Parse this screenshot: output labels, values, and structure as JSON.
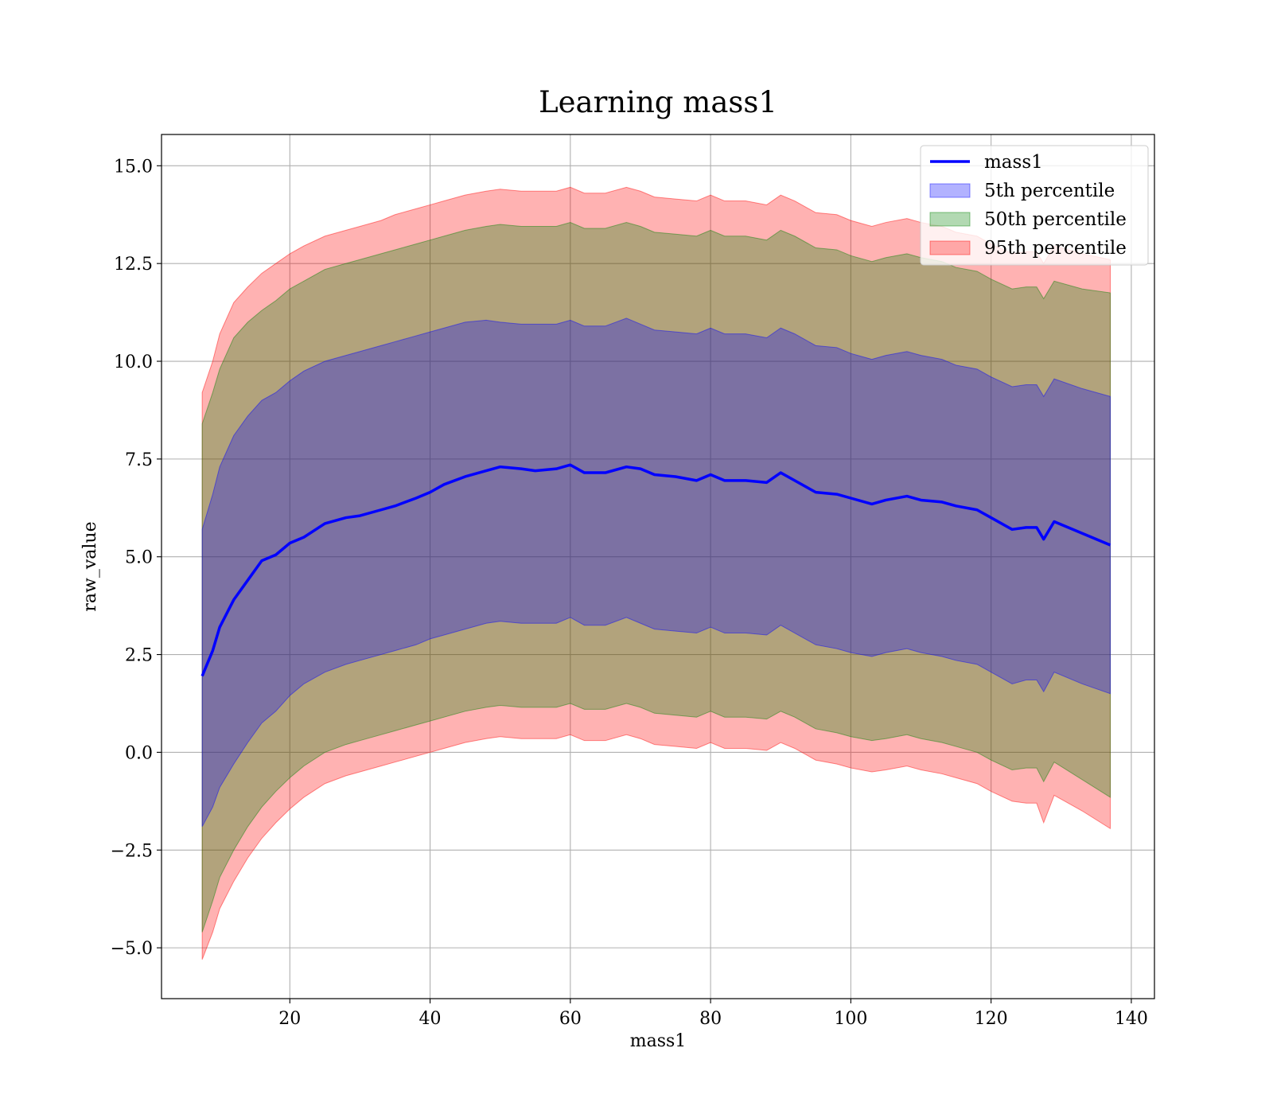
{
  "chart_data": {
    "type": "area",
    "title": "Learning mass1",
    "xlabel": "mass1",
    "ylabel": "raw_value",
    "xlim": [
      1.7,
      143.3
    ],
    "ylim": [
      -6.3,
      15.8
    ],
    "xticks": [
      20,
      40,
      60,
      80,
      100,
      120,
      140
    ],
    "xtick_labels": [
      "20",
      "40",
      "60",
      "80",
      "100",
      "120",
      "140"
    ],
    "yticks": [
      -5.0,
      -2.5,
      0.0,
      2.5,
      5.0,
      7.5,
      10.0,
      12.5,
      15.0
    ],
    "ytick_labels": [
      "−5.0",
      "−2.5",
      "0.0",
      "2.5",
      "5.0",
      "7.5",
      "10.0",
      "12.5",
      "15.0"
    ],
    "grid": true,
    "legend_position": "top-right",
    "x": [
      7.5,
      9,
      10,
      12,
      14,
      16,
      18,
      20,
      22,
      25,
      28,
      30,
      33,
      35,
      38,
      40,
      42,
      45,
      48,
      50,
      53,
      55,
      58,
      60,
      62,
      65,
      68,
      70,
      72,
      75,
      78,
      80,
      82,
      85,
      88,
      90,
      92,
      95,
      98,
      100,
      103,
      105,
      108,
      110,
      113,
      115,
      118,
      120,
      123,
      125,
      126.5,
      127.5,
      129,
      133,
      137
    ],
    "series": [
      {
        "name": "mass1",
        "kind": "line",
        "color": "#0000ff",
        "values": [
          1.95,
          2.6,
          3.2,
          3.9,
          4.4,
          4.9,
          5.05,
          5.35,
          5.5,
          5.85,
          6.0,
          6.05,
          6.2,
          6.3,
          6.5,
          6.65,
          6.85,
          7.05,
          7.2,
          7.3,
          7.25,
          7.2,
          7.25,
          7.35,
          7.15,
          7.15,
          7.3,
          7.25,
          7.1,
          7.05,
          6.95,
          7.1,
          6.95,
          6.95,
          6.9,
          7.15,
          6.95,
          6.65,
          6.6,
          6.5,
          6.35,
          6.45,
          6.55,
          6.45,
          6.4,
          6.3,
          6.2,
          6.0,
          5.7,
          5.75,
          5.75,
          5.45,
          5.9,
          5.6,
          5.3
        ]
      },
      {
        "name": "5th percentile",
        "kind": "band",
        "color": "#0000ff",
        "opacity": 0.3,
        "upper": [
          5.7,
          6.6,
          7.3,
          8.1,
          8.6,
          9.0,
          9.2,
          9.5,
          9.75,
          10.0,
          10.15,
          10.25,
          10.4,
          10.5,
          10.65,
          10.75,
          10.85,
          11.0,
          11.05,
          11.0,
          10.95,
          10.95,
          10.95,
          11.05,
          10.9,
          10.9,
          11.1,
          10.95,
          10.8,
          10.75,
          10.7,
          10.85,
          10.7,
          10.7,
          10.6,
          10.85,
          10.7,
          10.4,
          10.35,
          10.2,
          10.05,
          10.15,
          10.25,
          10.15,
          10.05,
          9.9,
          9.8,
          9.6,
          9.35,
          9.4,
          9.4,
          9.1,
          9.55,
          9.3,
          9.1
        ],
        "lower": [
          -1.9,
          -1.4,
          -0.9,
          -0.3,
          0.25,
          0.75,
          1.05,
          1.45,
          1.75,
          2.05,
          2.25,
          2.35,
          2.5,
          2.6,
          2.75,
          2.9,
          3.0,
          3.15,
          3.3,
          3.35,
          3.3,
          3.3,
          3.3,
          3.45,
          3.25,
          3.25,
          3.45,
          3.3,
          3.15,
          3.1,
          3.05,
          3.2,
          3.05,
          3.05,
          3.0,
          3.25,
          3.05,
          2.75,
          2.65,
          2.55,
          2.45,
          2.55,
          2.65,
          2.55,
          2.45,
          2.35,
          2.25,
          2.05,
          1.75,
          1.85,
          1.85,
          1.55,
          2.05,
          1.75,
          1.5
        ]
      },
      {
        "name": "50th percentile",
        "kind": "band",
        "color": "#008000",
        "opacity": 0.3,
        "upper": [
          8.4,
          9.2,
          9.8,
          10.6,
          11.0,
          11.3,
          11.55,
          11.85,
          12.05,
          12.35,
          12.5,
          12.6,
          12.75,
          12.85,
          13.0,
          13.1,
          13.2,
          13.35,
          13.45,
          13.5,
          13.45,
          13.45,
          13.45,
          13.55,
          13.4,
          13.4,
          13.55,
          13.45,
          13.3,
          13.25,
          13.2,
          13.35,
          13.2,
          13.2,
          13.1,
          13.35,
          13.2,
          12.9,
          12.85,
          12.7,
          12.55,
          12.65,
          12.75,
          12.65,
          12.55,
          12.4,
          12.3,
          12.1,
          11.85,
          11.9,
          11.9,
          11.6,
          12.05,
          11.85,
          11.75
        ],
        "lower": [
          -4.6,
          -3.8,
          -3.2,
          -2.5,
          -1.9,
          -1.4,
          -1.0,
          -0.65,
          -0.35,
          0.0,
          0.2,
          0.3,
          0.45,
          0.55,
          0.7,
          0.8,
          0.9,
          1.05,
          1.15,
          1.2,
          1.15,
          1.15,
          1.15,
          1.25,
          1.1,
          1.1,
          1.25,
          1.15,
          1.0,
          0.95,
          0.9,
          1.05,
          0.9,
          0.9,
          0.85,
          1.05,
          0.9,
          0.6,
          0.5,
          0.4,
          0.3,
          0.35,
          0.45,
          0.35,
          0.25,
          0.15,
          0.0,
          -0.2,
          -0.45,
          -0.4,
          -0.4,
          -0.75,
          -0.25,
          -0.7,
          -1.15
        ]
      },
      {
        "name": "95th percentile",
        "kind": "band",
        "color": "#ff0000",
        "opacity": 0.3,
        "upper": [
          9.2,
          10.0,
          10.7,
          11.5,
          11.9,
          12.25,
          12.5,
          12.75,
          12.95,
          13.2,
          13.35,
          13.45,
          13.6,
          13.75,
          13.9,
          14.0,
          14.1,
          14.25,
          14.35,
          14.4,
          14.35,
          14.35,
          14.35,
          14.45,
          14.3,
          14.3,
          14.45,
          14.35,
          14.2,
          14.15,
          14.1,
          14.25,
          14.1,
          14.1,
          14.0,
          14.25,
          14.1,
          13.8,
          13.75,
          13.6,
          13.45,
          13.55,
          13.65,
          13.55,
          13.45,
          13.3,
          13.2,
          13.0,
          12.75,
          12.8,
          12.8,
          12.5,
          12.95,
          12.75,
          12.6
        ],
        "lower": [
          -5.3,
          -4.6,
          -4.0,
          -3.3,
          -2.7,
          -2.2,
          -1.8,
          -1.45,
          -1.15,
          -0.8,
          -0.6,
          -0.5,
          -0.35,
          -0.25,
          -0.1,
          0.0,
          0.1,
          0.25,
          0.35,
          0.4,
          0.35,
          0.35,
          0.35,
          0.45,
          0.3,
          0.3,
          0.45,
          0.35,
          0.2,
          0.15,
          0.1,
          0.25,
          0.1,
          0.1,
          0.05,
          0.25,
          0.1,
          -0.2,
          -0.3,
          -0.4,
          -0.5,
          -0.45,
          -0.35,
          -0.45,
          -0.55,
          -0.65,
          -0.8,
          -1.0,
          -1.25,
          -1.3,
          -1.3,
          -1.8,
          -1.1,
          -1.5,
          -1.95
        ]
      }
    ]
  }
}
